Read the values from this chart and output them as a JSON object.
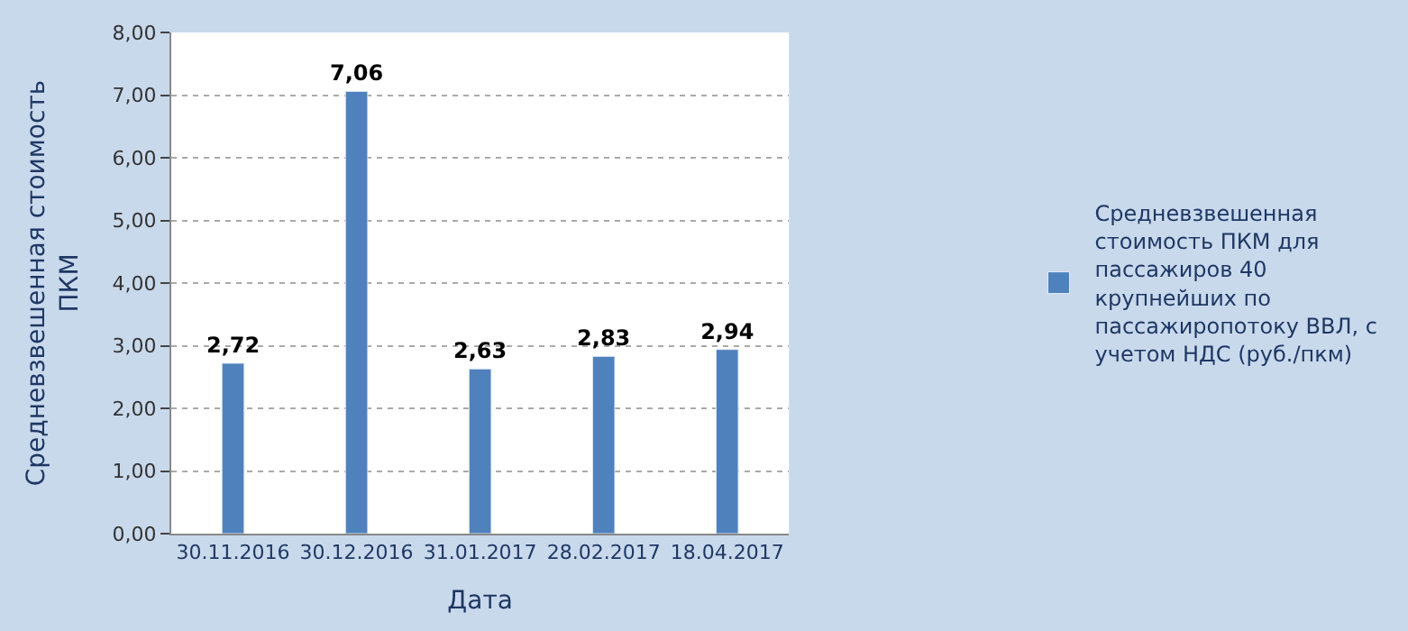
{
  "chart_data": {
    "type": "bar",
    "categories": [
      "30.11.2016",
      "30.12.2016",
      "31.01.2017",
      "28.02.2017",
      "18.04.2017"
    ],
    "series": [
      {
        "name": "Средневзвешенная стоимость ПКМ для пассажиров 40 крупнейших по пассажиропотоку ВВЛ, с учетом НДС (руб./пкм)",
        "color": "#4f81bd",
        "values": [
          2.72,
          7.06,
          2.63,
          2.83,
          2.94
        ],
        "value_labels": [
          "2,72",
          "7,06",
          "2,63",
          "2,83",
          "2,94"
        ]
      }
    ],
    "xlabel": "Дата",
    "ylabel": "Средневзвешенная стоимость ПКМ",
    "ylim": [
      0,
      8
    ],
    "yticks": [
      {
        "value": 0,
        "label": "0,00"
      },
      {
        "value": 1,
        "label": "1,00"
      },
      {
        "value": 2,
        "label": "2,00"
      },
      {
        "value": 3,
        "label": "3,00"
      },
      {
        "value": 4,
        "label": "4,00"
      },
      {
        "value": 5,
        "label": "5,00"
      },
      {
        "value": 6,
        "label": "6,00"
      },
      {
        "value": 7,
        "label": "7,00"
      },
      {
        "value": 8,
        "label": "8,00"
      }
    ],
    "grid": "y",
    "legend": "right"
  }
}
